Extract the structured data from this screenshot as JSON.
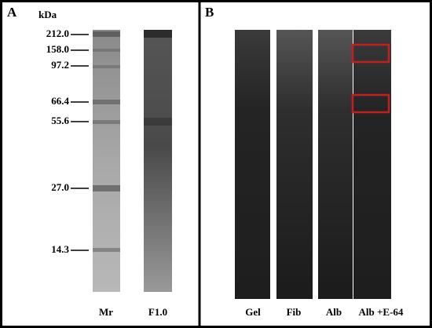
{
  "panel_a": {
    "label": "A",
    "unit": "kDa",
    "markers": [
      "212.0",
      "158.0",
      "97.2",
      "66.4",
      "55.6",
      "27.0",
      "14.3"
    ],
    "lanes": [
      "Mr",
      "F1.0"
    ]
  },
  "panel_b": {
    "label": "B",
    "lanes": [
      "Gel",
      "Fib",
      "Alb",
      "Alb +E-64"
    ]
  }
}
